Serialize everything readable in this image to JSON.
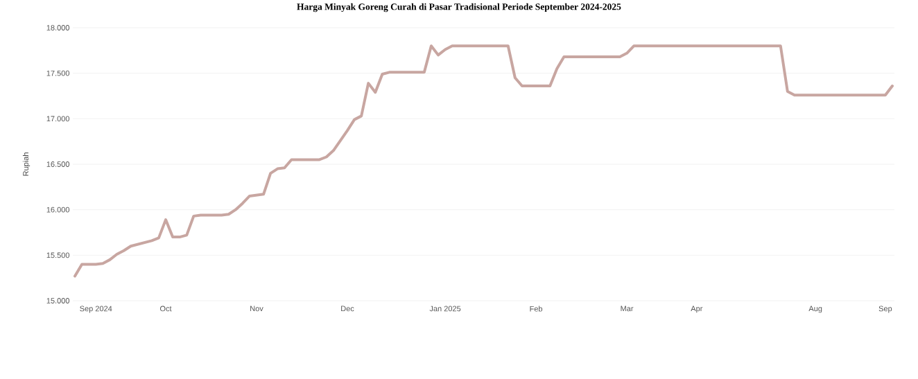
{
  "chart_data": {
    "type": "line",
    "title": "Harga Minyak Goreng Curah di Pasar Tradisional Periode September 2024-2025",
    "ylabel": "Rupiah",
    "categories": [
      null,
      null,
      null,
      "Sep 2024",
      null,
      null,
      null,
      null,
      null,
      null,
      null,
      null,
      null,
      "Oct",
      null,
      null,
      null,
      null,
      null,
      null,
      null,
      null,
      null,
      null,
      null,
      null,
      "Nov",
      null,
      null,
      null,
      null,
      null,
      null,
      null,
      null,
      null,
      null,
      null,
      null,
      "Dec",
      null,
      null,
      null,
      null,
      null,
      null,
      null,
      null,
      null,
      null,
      null,
      null,
      null,
      "Jan 2025",
      null,
      null,
      null,
      null,
      null,
      null,
      null,
      null,
      null,
      null,
      null,
      null,
      "Feb",
      null,
      null,
      null,
      null,
      null,
      null,
      null,
      null,
      null,
      null,
      null,
      null,
      "Mar",
      null,
      null,
      null,
      null,
      null,
      null,
      null,
      null,
      null,
      "Apr",
      null,
      null,
      null,
      null,
      null,
      null,
      null,
      null,
      null,
      null,
      null,
      null,
      null,
      null,
      null,
      null,
      "Aug",
      null,
      null,
      null,
      null,
      null,
      null,
      null,
      null,
      null,
      "Sep",
      null
    ],
    "series": [
      {
        "color": "#c8a6a1",
        "values": [
          15270,
          15400,
          15400,
          15400,
          15410,
          15450,
          15510,
          15550,
          15600,
          15620,
          15640,
          15660,
          15690,
          15890,
          15700,
          15700,
          15720,
          15930,
          15940,
          15940,
          15940,
          15940,
          15950,
          16000,
          16070,
          16150,
          16160,
          16170,
          16400,
          16450,
          16460,
          16550,
          16550,
          16550,
          16550,
          16550,
          16580,
          16650,
          16760,
          16870,
          16990,
          17030,
          17390,
          17290,
          17490,
          17510,
          17510,
          17510,
          17510,
          17510,
          17510,
          17800,
          17700,
          17760,
          17800,
          17800,
          17800,
          17800,
          17800,
          17800,
          17800,
          17800,
          17800,
          17450,
          17360,
          17360,
          17360,
          17360,
          17360,
          17550,
          17680,
          17680,
          17680,
          17680,
          17680,
          17680,
          17680,
          17680,
          17680,
          17720,
          17800,
          17800,
          17800,
          17800,
          17800,
          17800,
          17800,
          17800,
          17800,
          17800,
          17800,
          17800,
          17800,
          17800,
          17800,
          17800,
          17800,
          17800,
          17800,
          17800,
          17800,
          17800,
          17300,
          17260,
          17260,
          17260,
          17260,
          17260,
          17260,
          17260,
          17260,
          17260,
          17260,
          17260,
          17260,
          17260,
          17260,
          17360
        ]
      }
    ],
    "ylim": [
      15000,
      18000
    ],
    "yticks": [
      {
        "value": 15000,
        "label": "15.000"
      },
      {
        "value": 15500,
        "label": "15.500"
      },
      {
        "value": 16000,
        "label": "16.000"
      },
      {
        "value": 16500,
        "label": "16.500"
      },
      {
        "value": 17000,
        "label": "17.000"
      },
      {
        "value": 17500,
        "label": "17.500"
      },
      {
        "value": 18000,
        "label": "18.000"
      }
    ],
    "grid": "y",
    "line_style": "solid"
  }
}
